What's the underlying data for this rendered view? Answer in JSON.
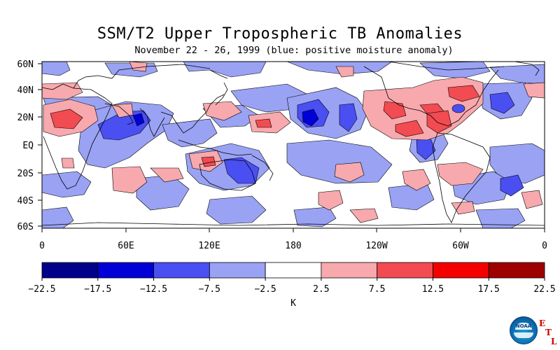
{
  "title": "SSM/T2 Upper Tropospheric TB Anomalies",
  "subtitle": "November 22 - 26, 1999 (blue: positive moisture anomaly)",
  "map": {
    "lat_labels": [
      "60N",
      "40N",
      "20N",
      "EQ",
      "20S",
      "40S",
      "60S"
    ],
    "lon_labels": [
      "0",
      "60E",
      "120E",
      "180",
      "120W",
      "60W",
      "0"
    ]
  },
  "colorbar": {
    "unit": "K",
    "ticks": [
      "-22.5",
      "-17.5",
      "-12.5",
      "-7.5",
      "-2.5",
      "2.5",
      "7.5",
      "12.5",
      "17.5",
      "22.5"
    ],
    "colors": [
      "#00008b",
      "#0000d7",
      "#4a4ff2",
      "#9aa2f4",
      "#ffffff",
      "#f7a9ad",
      "#f24b52",
      "#f40000",
      "#9e0000"
    ]
  },
  "logo": {
    "agency": "NOAA",
    "lab_letters": [
      "E",
      "T",
      "L"
    ]
  }
}
